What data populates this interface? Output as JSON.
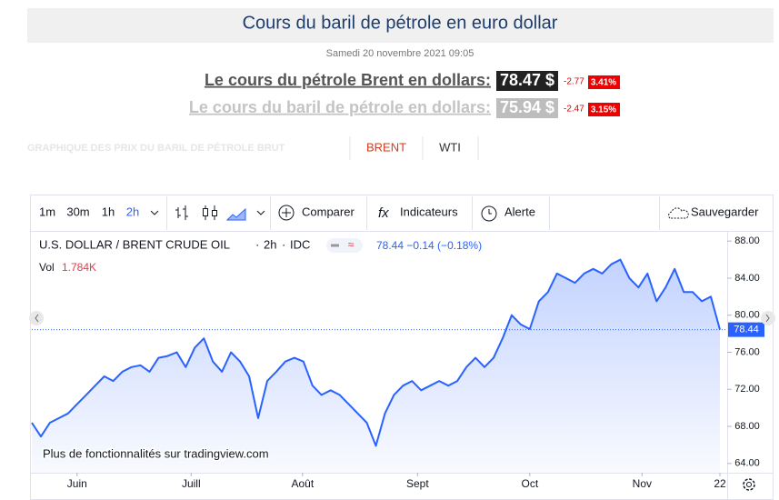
{
  "header": {
    "title": "Cours du baril de pétrole en euro dollar",
    "date": "Samedi 20 novembre 2021 09:05"
  },
  "quotes": [
    {
      "label": "Le cours du pétrole Brent en dollars:",
      "price": "78.47 $",
      "change": "-2.77",
      "percent": "3.41%"
    },
    {
      "label": "Le cours du baril de pétrole en dollars:",
      "price": "75.94 $",
      "change": "-2.47",
      "percent": "3.15%"
    }
  ],
  "tabs": {
    "heading": "GRAPHIQUE DES PRIX DU BARIL DE PÉTROLE BRUT",
    "items": [
      "BRENT",
      "WTI"
    ]
  },
  "toolbar": {
    "intervals": [
      "1m",
      "30m",
      "1h",
      "2h"
    ],
    "compare": "Comparer",
    "indicators": "Indicateurs",
    "alert": "Alerte",
    "save": "Sauvegarder"
  },
  "chart_data": {
    "type": "line",
    "symbol": "U.S. DOLLAR / BRENT CRUDE OIL",
    "interval": "2h",
    "source": "IDC",
    "legend_quote": "78.44 −0.14 (−0.18%)",
    "volume_label": "Vol",
    "volume": "1.784K",
    "watermark": "Plus de fonctionnalités sur tradingview.com",
    "series": [
      {
        "name": "U.S. DOLLAR / BRENT CRUDE OIL",
        "color": "#2962ff",
        "values": [
          68.4,
          66.9,
          68.4,
          68.9,
          69.4,
          70.4,
          71.4,
          72.4,
          73.4,
          72.9,
          73.9,
          74.4,
          74.6,
          73.9,
          75.4,
          75.6,
          76.0,
          74.4,
          76.5,
          77.5,
          75.0,
          73.9,
          76.0,
          75.0,
          73.4,
          68.9,
          72.9,
          73.9,
          75.0,
          75.4,
          75.0,
          72.4,
          71.4,
          71.9,
          71.4,
          70.4,
          69.4,
          68.4,
          65.9,
          69.4,
          71.4,
          72.4,
          72.9,
          71.9,
          72.4,
          72.9,
          72.4,
          72.9,
          74.4,
          75.4,
          74.4,
          75.4,
          77.5,
          80.0,
          79.0,
          78.5,
          81.5,
          82.5,
          84.5,
          84.0,
          83.5,
          84.5,
          85.0,
          84.5,
          85.5,
          86.0,
          84.0,
          83.0,
          84.5,
          81.5,
          83.0,
          85.0,
          82.5,
          82.5,
          81.5,
          82.0,
          78.44
        ]
      }
    ],
    "last_price": {
      "value": 78.44,
      "label": "78.44"
    },
    "xlim": [
      0,
      76
    ],
    "xticks": [
      {
        "value": 5.0,
        "label": "Juin"
      },
      {
        "value": 17.6,
        "label": "Juill"
      },
      {
        "value": 29.9,
        "label": "Août"
      },
      {
        "value": 42.6,
        "label": "Sept"
      },
      {
        "value": 55.0,
        "label": "Oct"
      },
      {
        "value": 67.4,
        "label": "Nov"
      },
      {
        "value": 76,
        "label": "22"
      }
    ],
    "ylim": [
      63.0,
      89.0
    ],
    "yticks": [
      {
        "value": 64,
        "label": "64.00"
      },
      {
        "value": 68,
        "label": "68.00"
      },
      {
        "value": 72,
        "label": "72.00"
      },
      {
        "value": 76,
        "label": "76.00"
      },
      {
        "value": 80,
        "label": "80.00"
      },
      {
        "value": 84,
        "label": "84.00"
      },
      {
        "value": 88,
        "label": "88.00"
      }
    ]
  }
}
